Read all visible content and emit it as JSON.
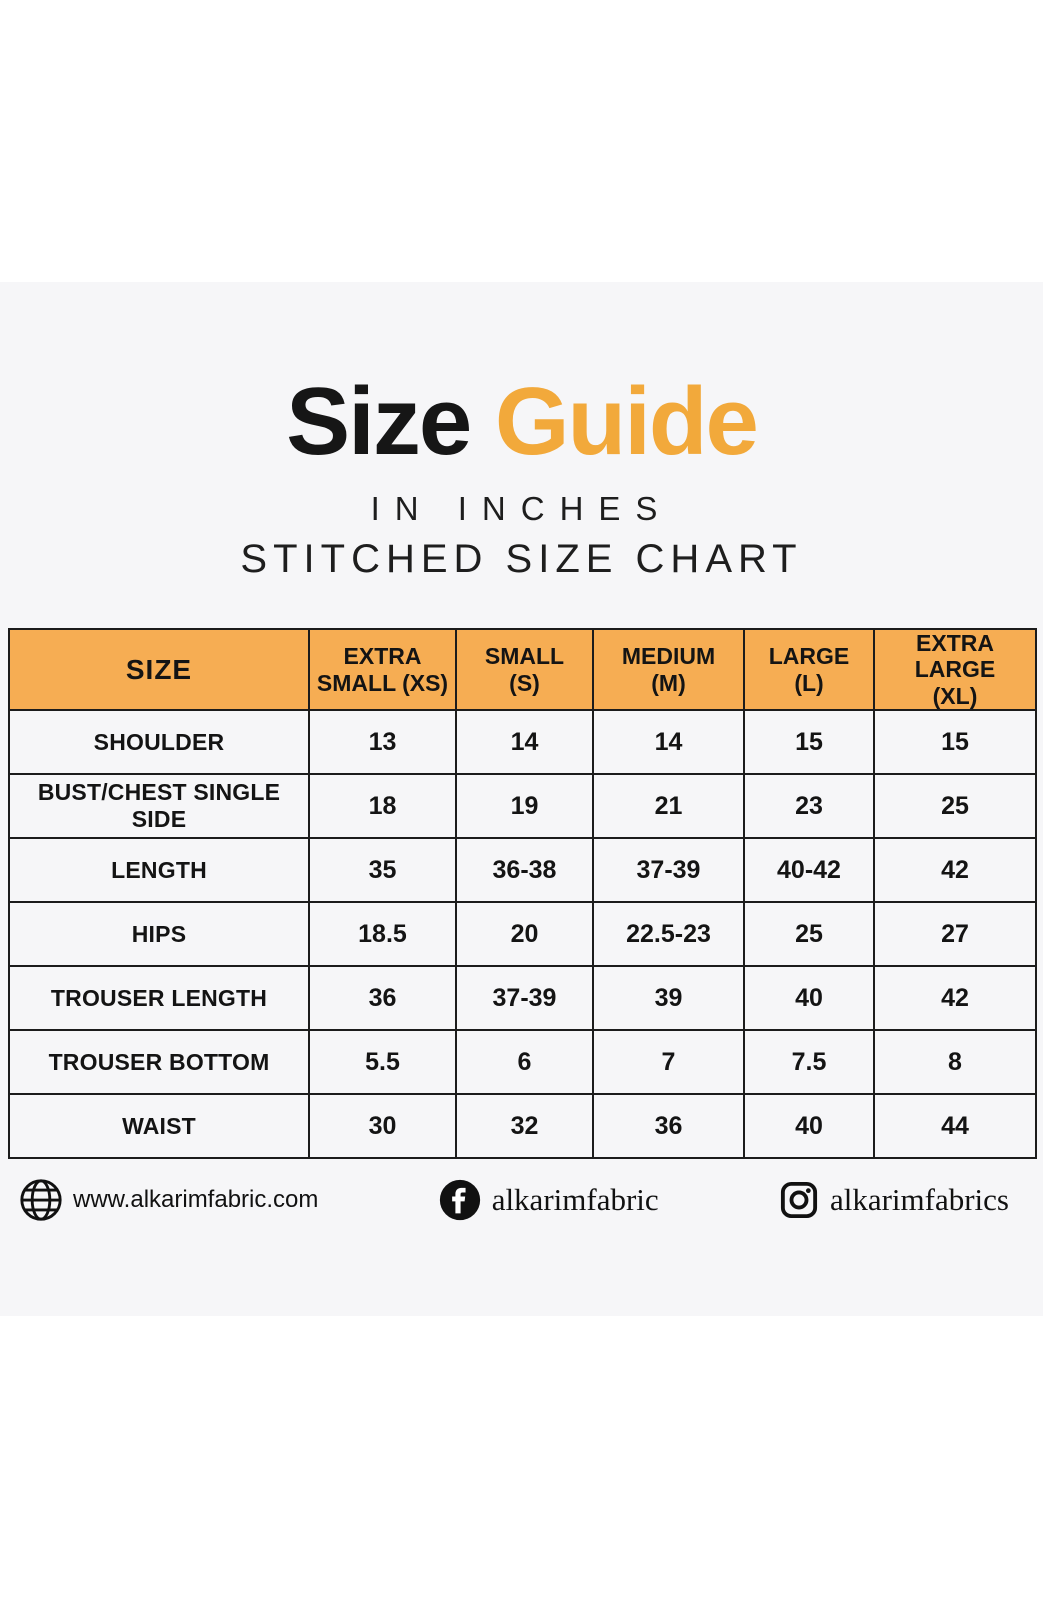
{
  "title": {
    "word_black": "Size",
    "word_orange": "Guide",
    "subtitle_line1": "IN INCHES",
    "subtitle_line2": "STITCHED SIZE CHART"
  },
  "colors": {
    "accent_orange": "#F6AD53",
    "title_orange": "#F2A93B",
    "panel_gray": "#F6F6F8",
    "border_black": "#1C1C1C"
  },
  "chart_data": {
    "type": "table",
    "title": "Size Guide in inches — Stitched Size Chart",
    "columns": [
      "SIZE",
      "EXTRA\nSMALL (XS)",
      "SMALL\n(S)",
      "MEDIUM\n(M)",
      "LARGE\n(L)",
      "EXTRA LARGE\n(XL)"
    ],
    "rows": [
      {
        "label": "SHOULDER",
        "values": [
          "13",
          "14",
          "14",
          "15",
          "15"
        ]
      },
      {
        "label": "BUST/CHEST SINGLE SIDE",
        "values": [
          "18",
          "19",
          "21",
          "23",
          "25"
        ]
      },
      {
        "label": "LENGTH",
        "values": [
          "35",
          "36-38",
          "37-39",
          "40-42",
          "42"
        ]
      },
      {
        "label": "HIPS",
        "values": [
          "18.5",
          "20",
          "22.5-23",
          "25",
          "27"
        ]
      },
      {
        "label": "TROUSER LENGTH",
        "values": [
          "36",
          "37-39",
          "39",
          "40",
          "42"
        ]
      },
      {
        "label": "TROUSER BOTTOM",
        "values": [
          "5.5",
          "6",
          "7",
          "7.5",
          "8"
        ]
      },
      {
        "label": "WAIST",
        "values": [
          "30",
          "32",
          "36",
          "40",
          "44"
        ]
      }
    ]
  },
  "footer": {
    "website_label": "www.alkarimfabric.com",
    "facebook_label": "alkarimfabric",
    "instagram_label": "alkarimfabrics"
  }
}
